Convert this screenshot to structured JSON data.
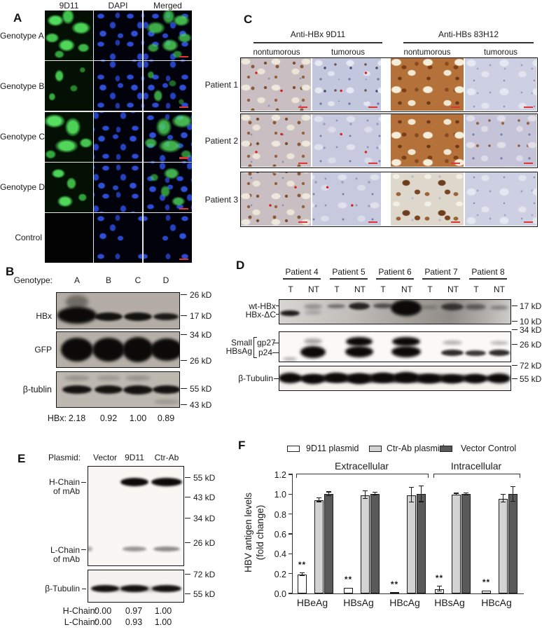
{
  "panelA": {
    "label": "A",
    "columns": [
      "9D11",
      "DAPI",
      "Merged"
    ],
    "rows": [
      "Genotype A",
      "Genotype B",
      "Genotype C",
      "Genotype D",
      "Control"
    ]
  },
  "panelB": {
    "label": "B",
    "header_label": "Genotype:",
    "lanes": [
      "A",
      "B",
      "C",
      "D"
    ],
    "blot_labels": [
      "HBx",
      "GFP",
      "β-tublin"
    ],
    "markers": [
      "26 kD",
      "17 kD",
      "34 kD",
      "26 kD",
      "55 kD",
      "43 kD"
    ],
    "quant_label": "HBx:",
    "quant_values": [
      "2.18",
      "0.92",
      "1.00",
      "0.89"
    ]
  },
  "panelC": {
    "label": "C",
    "groups": [
      "Anti-HBx 9D11",
      "Anti-HBs 83H12"
    ],
    "subcolumns": [
      "nontumorous",
      "tumorous",
      "nontumorous",
      "tumorous"
    ],
    "rows": [
      "Patient 1",
      "Patient 2",
      "Patient 3"
    ]
  },
  "panelD": {
    "label": "D",
    "patients": [
      "Patient 4",
      "Patient 5",
      "Patient 6",
      "Patient 7",
      "Patient 8"
    ],
    "tnt": [
      "T",
      "NT"
    ],
    "wt_label": "wt-HBx",
    "dc_label": "HBx-ΔC",
    "small1": "Small",
    "small2": "HBsAg",
    "gp27": "gp27",
    "p24": "p24",
    "tubulin": "β-Tubulin",
    "markers": [
      "17 kD",
      "10 kD",
      "34 kD",
      "26 kD",
      "72 kD",
      "55 kD"
    ]
  },
  "panelE": {
    "label": "E",
    "header_label": "Plasmid:",
    "lanes": [
      "Vector",
      "9D11",
      "Ctr-Ab"
    ],
    "hchain1": "H-Chain",
    "hchain2": "of mAb",
    "lchain1": "L-Chain",
    "lchain2": "of mAb",
    "tubulin": "β-Tubulin",
    "markers": [
      "55 kD",
      "43 kD",
      "34 kD",
      "26 kD",
      "72 kD",
      "55 kD"
    ],
    "quant": [
      {
        "label": "H-Chain:",
        "values": [
          "0.00",
          "0.97",
          "1.00"
        ]
      },
      {
        "label": "L-Chain:",
        "values": [
          "0.00",
          "0.93",
          "1.00"
        ]
      }
    ]
  },
  "panelF": {
    "label": "F"
  },
  "chart_data": {
    "type": "bar",
    "title": "",
    "ylabel_line1": "HBV antigen levels",
    "ylabel_line2": "(fold change)",
    "ylim": [
      0,
      1.2
    ],
    "yticks": [
      "0.0",
      "0.2",
      "0.4",
      "0.6",
      "0.8",
      "1.0",
      "1.2"
    ],
    "grid": false,
    "legend_position": "top",
    "categories": [
      "HBeAg",
      "HBsAg",
      "HBcAg",
      "HBsAg",
      "HBcAg"
    ],
    "sections": [
      {
        "label": "Extracellular",
        "groups": [
          0,
          1,
          2
        ]
      },
      {
        "label": "Intracellular",
        "groups": [
          3,
          4
        ]
      }
    ],
    "series": [
      {
        "name": "9D11 plasmid",
        "color": "#ffffff",
        "values": [
          0.19,
          0.055,
          0.01,
          0.045,
          0.03
        ],
        "errors": [
          0.015,
          0,
          0,
          0.025,
          0
        ],
        "sig": [
          "**",
          "**",
          "**",
          "**",
          "**"
        ]
      },
      {
        "name": "Ctr-Ab plasmid",
        "color": "#d3d3d3",
        "values": [
          0.94,
          0.99,
          0.99,
          0.995,
          0.955
        ],
        "errors": [
          0.02,
          0.04,
          0.075,
          0.01,
          0.04
        ]
      },
      {
        "name": "Vector Control",
        "color": "#595959",
        "values": [
          1.0,
          1.0,
          1.0,
          1.0,
          1.0
        ],
        "errors": [
          0.02,
          0.015,
          0.08,
          0.01,
          0.075
        ]
      }
    ]
  },
  "blot_bands": {
    "b_hbx": [
      [
        29,
        32,
        56,
        24,
        1,
        2.5
      ],
      [
        29,
        13,
        32,
        20,
        0.4,
        3
      ],
      [
        74,
        34,
        40,
        12,
        0.95,
        1.6
      ],
      [
        116,
        34,
        40,
        12,
        0.95,
        1.6
      ],
      [
        156,
        34,
        36,
        10,
        0.9,
        1.6
      ]
    ],
    "b_gfp": [
      [
        29,
        25,
        46,
        34,
        1,
        2
      ],
      [
        74,
        25,
        46,
        34,
        1,
        2
      ],
      [
        116,
        25,
        44,
        36,
        1,
        2
      ],
      [
        157,
        25,
        46,
        32,
        1,
        2
      ]
    ],
    "b_tub": [
      [
        29,
        25,
        42,
        12,
        0.95,
        1.6
      ],
      [
        74,
        25,
        40,
        12,
        0.95,
        1.6
      ],
      [
        116,
        25,
        42,
        13,
        0.95,
        1.6
      ],
      [
        157,
        25,
        40,
        12,
        0.95,
        1.6
      ],
      [
        29,
        8,
        36,
        7,
        0.22,
        2.5
      ],
      [
        74,
        8,
        34,
        7,
        0.18,
        2.5
      ],
      [
        116,
        8,
        36,
        7,
        0.22,
        2.5
      ],
      [
        157,
        42,
        36,
        7,
        0.18,
        2.5
      ]
    ],
    "d_hbx": [
      [
        15,
        19,
        28,
        8,
        0.9,
        1.6
      ],
      [
        48,
        9,
        26,
        7,
        0.3,
        2
      ],
      [
        48,
        18,
        24,
        6,
        0.2,
        2.2
      ],
      [
        81,
        9,
        26,
        6,
        0.45,
        1.8
      ],
      [
        114,
        9,
        30,
        10,
        0.85,
        1.6
      ],
      [
        148,
        8,
        28,
        7,
        0.6,
        1.8
      ],
      [
        181,
        11,
        44,
        23,
        1,
        2.2
      ],
      [
        214,
        10,
        24,
        5,
        0.25,
        2.2
      ],
      [
        247,
        10,
        32,
        10,
        0.7,
        1.8
      ],
      [
        280,
        10,
        30,
        8,
        0.5,
        2
      ],
      [
        314,
        11,
        26,
        6,
        0.35,
        2.2
      ]
    ],
    "d_hbs": [
      [
        15,
        38,
        20,
        5,
        0.3,
        2
      ],
      [
        48,
        28,
        36,
        17,
        1,
        2
      ],
      [
        48,
        13,
        26,
        8,
        0.35,
        2.5
      ],
      [
        114,
        13,
        38,
        13,
        1,
        2
      ],
      [
        114,
        28,
        40,
        16,
        1,
        2
      ],
      [
        181,
        13,
        40,
        13,
        1,
        2
      ],
      [
        181,
        28,
        42,
        16,
        1,
        2
      ],
      [
        247,
        29,
        32,
        9,
        0.85,
        1.6
      ],
      [
        247,
        15,
        28,
        6,
        0.3,
        2.2
      ],
      [
        280,
        30,
        30,
        8,
        0.8,
        1.6
      ],
      [
        314,
        29,
        30,
        9,
        0.85,
        1.6
      ],
      [
        314,
        15,
        26,
        5,
        0.3,
        2.2
      ]
    ],
    "d_tub": [
      [
        164,
        17,
        326,
        12,
        0.9,
        2
      ],
      [
        15,
        16,
        32,
        15,
        1,
        2
      ],
      [
        48,
        18,
        32,
        14,
        1,
        2
      ],
      [
        81,
        16,
        32,
        14,
        1,
        2
      ],
      [
        114,
        17,
        32,
        15,
        1,
        2
      ],
      [
        148,
        16,
        32,
        14,
        1,
        2
      ],
      [
        181,
        15,
        34,
        15,
        1,
        2
      ],
      [
        214,
        17,
        32,
        13,
        1,
        2
      ],
      [
        247,
        18,
        30,
        12,
        1,
        2
      ],
      [
        280,
        17,
        30,
        13,
        1,
        2
      ],
      [
        314,
        17,
        32,
        14,
        1,
        2
      ]
    ],
    "e_main": [
      [
        66,
        22,
        40,
        12,
        1,
        1.6
      ],
      [
        112,
        22,
        44,
        12,
        1,
        1.6
      ],
      [
        66,
        117,
        34,
        7,
        0.4,
        1.6
      ],
      [
        112,
        117,
        38,
        7,
        0.45,
        1.6
      ],
      [
        2,
        117,
        8,
        7,
        0.3,
        1.6
      ]
    ],
    "e_tub": [
      [
        24,
        26,
        40,
        10,
        0.95,
        1.6
      ],
      [
        66,
        26,
        40,
        10,
        0.95,
        1.6
      ],
      [
        112,
        26,
        42,
        10,
        0.95,
        1.6
      ],
      [
        68,
        26,
        128,
        7,
        0.3,
        2.5
      ]
    ]
  }
}
